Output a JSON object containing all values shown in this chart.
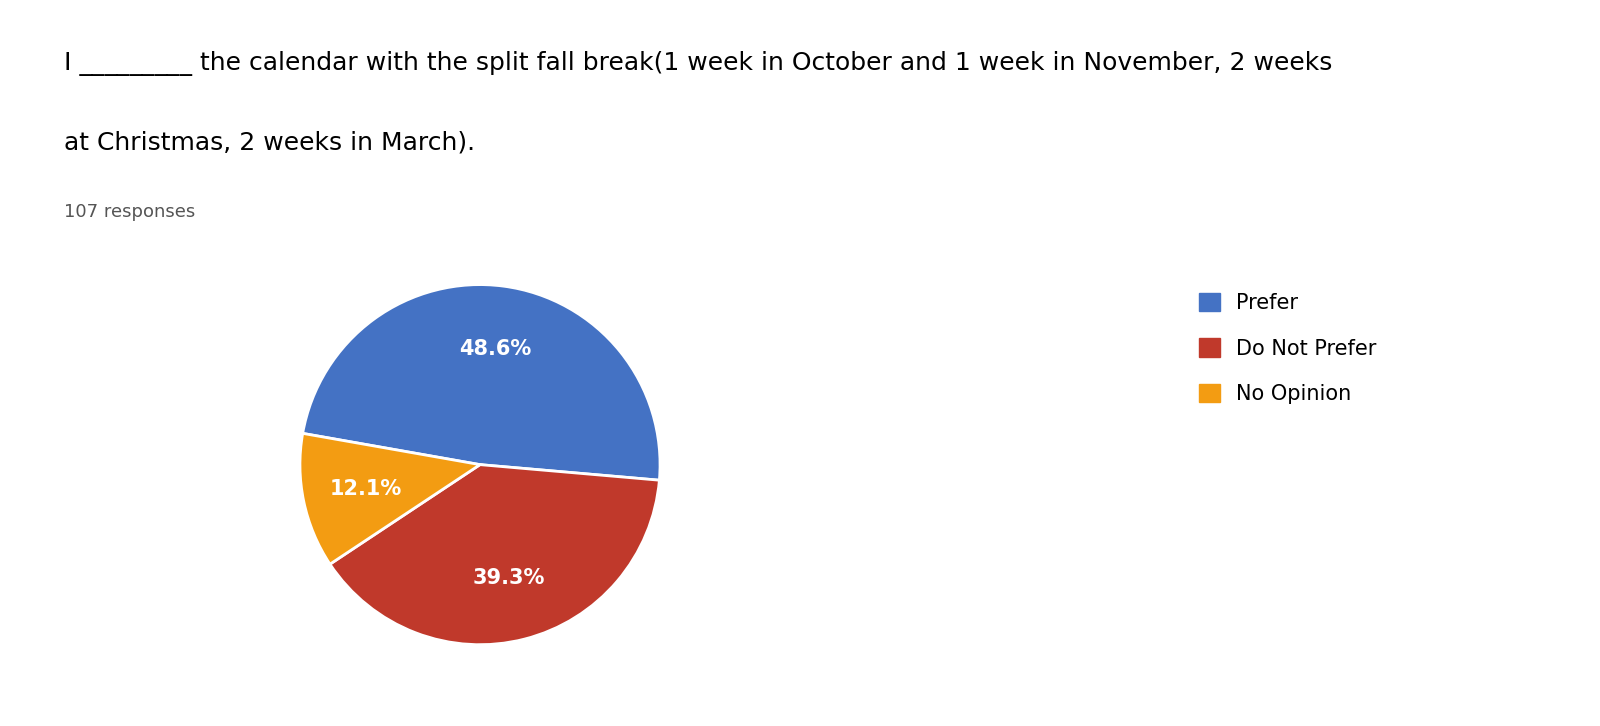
{
  "title_line1": "I _________ the calendar with the split fall break(1 week in October and 1 week in November, 2 weeks",
  "title_line2": "at Christmas, 2 weeks in March).",
  "responses_label": "107 responses",
  "labels": [
    "Prefer",
    "Do Not Prefer",
    "No Opinion"
  ],
  "values": [
    48.6,
    39.3,
    12.1
  ],
  "colors": [
    "#4472C4",
    "#C0392B",
    "#F39C12"
  ],
  "text_color_slices": "#FFFFFF",
  "background_color": "#FFFFFF",
  "legend_labels": [
    "Prefer",
    "Do Not Prefer",
    "No Opinion"
  ],
  "title_fontsize": 18,
  "responses_fontsize": 13,
  "pct_fontsize": 15,
  "legend_fontsize": 15
}
